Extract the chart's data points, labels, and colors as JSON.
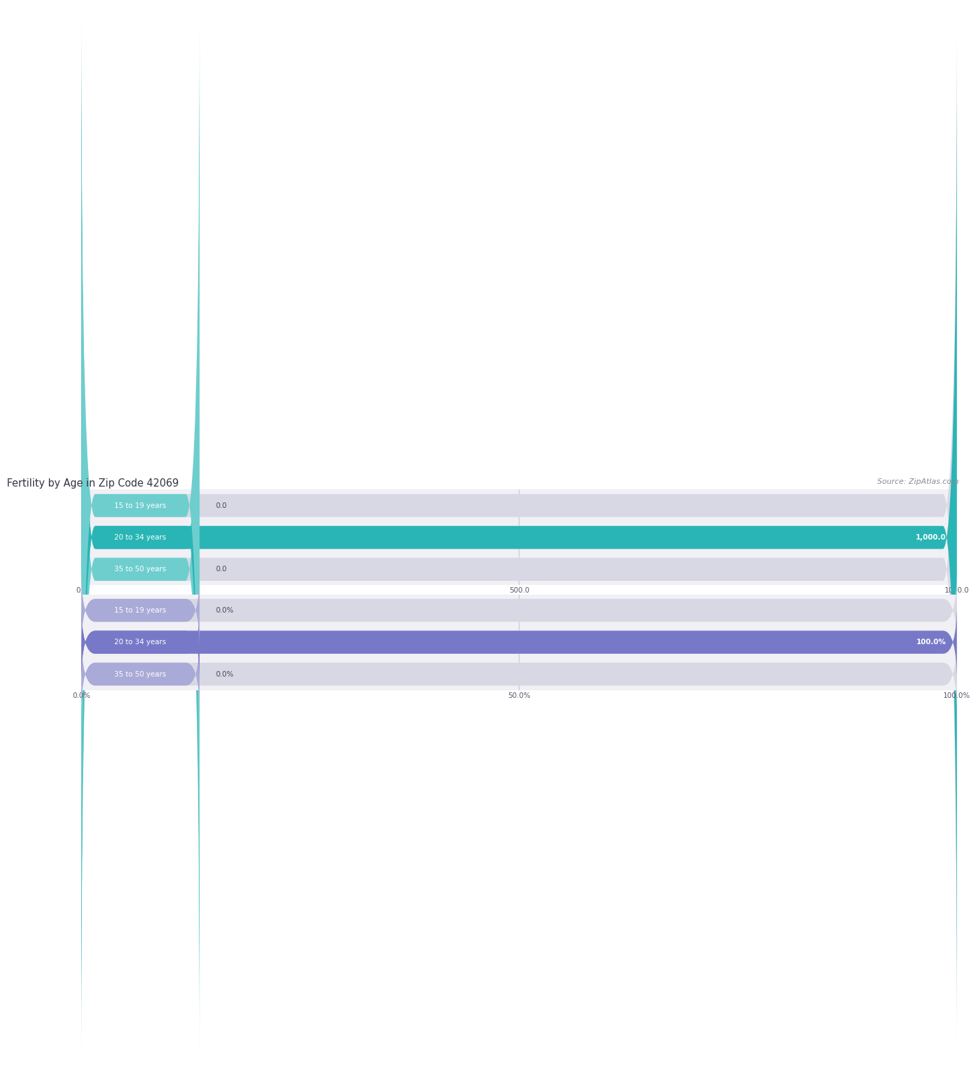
{
  "title": "Fertility by Age in Zip Code 42069",
  "source": "Source: ZipAtlas.com",
  "chart1": {
    "categories": [
      "15 to 19 years",
      "20 to 34 years",
      "35 to 50 years"
    ],
    "values": [
      0.0,
      1000.0,
      0.0
    ],
    "xlim": [
      0,
      1000
    ],
    "xticks": [
      0.0,
      500.0,
      1000.0
    ],
    "bar_color_full": "#29b5b5",
    "bar_color_small": "#6ecece",
    "bar_bg_color": "#d8d8e4"
  },
  "chart2": {
    "categories": [
      "15 to 19 years",
      "20 to 34 years",
      "35 to 50 years"
    ],
    "values": [
      0.0,
      100.0,
      0.0
    ],
    "xlim": [
      0,
      100
    ],
    "xticks": [
      0.0,
      50.0,
      100.0
    ],
    "bar_color_full": "#7878c8",
    "bar_color_small": "#aaaad8",
    "bar_bg_color": "#d8d8e4"
  },
  "title_color": "#333344",
  "source_color": "#888899",
  "value_label_color_inside": "#ffffff",
  "value_label_color_outside": "#444455",
  "axes_bg_color": "#f0f0f5"
}
